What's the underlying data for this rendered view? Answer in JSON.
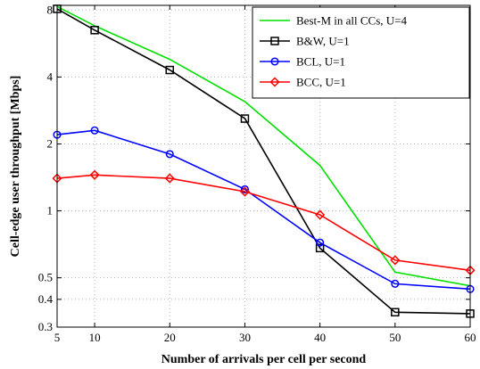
{
  "chart_data": {
    "type": "line",
    "xlabel": "Number of arrivals per cell per second",
    "ylabel": "Cell-edge user throughput [Mbps]",
    "xlim": [
      5,
      60
    ],
    "ylim": [
      0.3,
      8.4
    ],
    "yscale": "log",
    "grid": true,
    "legend_position": "top-right",
    "x_ticks": [
      5,
      10,
      20,
      30,
      40,
      50,
      60
    ],
    "x_tick_labels": [
      "5",
      "10",
      "20",
      "30",
      "40",
      "50",
      "60"
    ],
    "y_ticks": [
      0.3,
      0.4,
      0.5,
      1,
      2,
      4,
      8
    ],
    "y_tick_labels": [
      "0.3",
      "0.4",
      "0.5",
      "1",
      "2",
      "4",
      "8"
    ],
    "series": [
      {
        "name": "Best-M in all CCs, U=4",
        "color": "#00e000",
        "marker": "none",
        "x": [
          5,
          10,
          20,
          30,
          40,
          50,
          60
        ],
        "y": [
          8.3,
          6.8,
          4.8,
          3.1,
          1.6,
          0.53,
          0.46
        ]
      },
      {
        "name": "B&W, U=1",
        "color": "#000000",
        "marker": "square",
        "x": [
          5,
          10,
          20,
          30,
          40,
          50,
          60
        ],
        "y": [
          8.1,
          6.5,
          4.3,
          2.6,
          0.68,
          0.35,
          0.345
        ]
      },
      {
        "name": "BCL, U=1",
        "color": "#0000ff",
        "marker": "circle",
        "x": [
          5,
          10,
          20,
          30,
          40,
          50,
          60
        ],
        "y": [
          2.2,
          2.3,
          1.8,
          1.25,
          0.72,
          0.47,
          0.445
        ]
      },
      {
        "name": "BCC, U=1",
        "color": "#ff0000",
        "marker": "diamond",
        "x": [
          5,
          10,
          20,
          30,
          40,
          50,
          60
        ],
        "y": [
          1.4,
          1.45,
          1.4,
          1.22,
          0.96,
          0.6,
          0.54
        ]
      }
    ]
  }
}
